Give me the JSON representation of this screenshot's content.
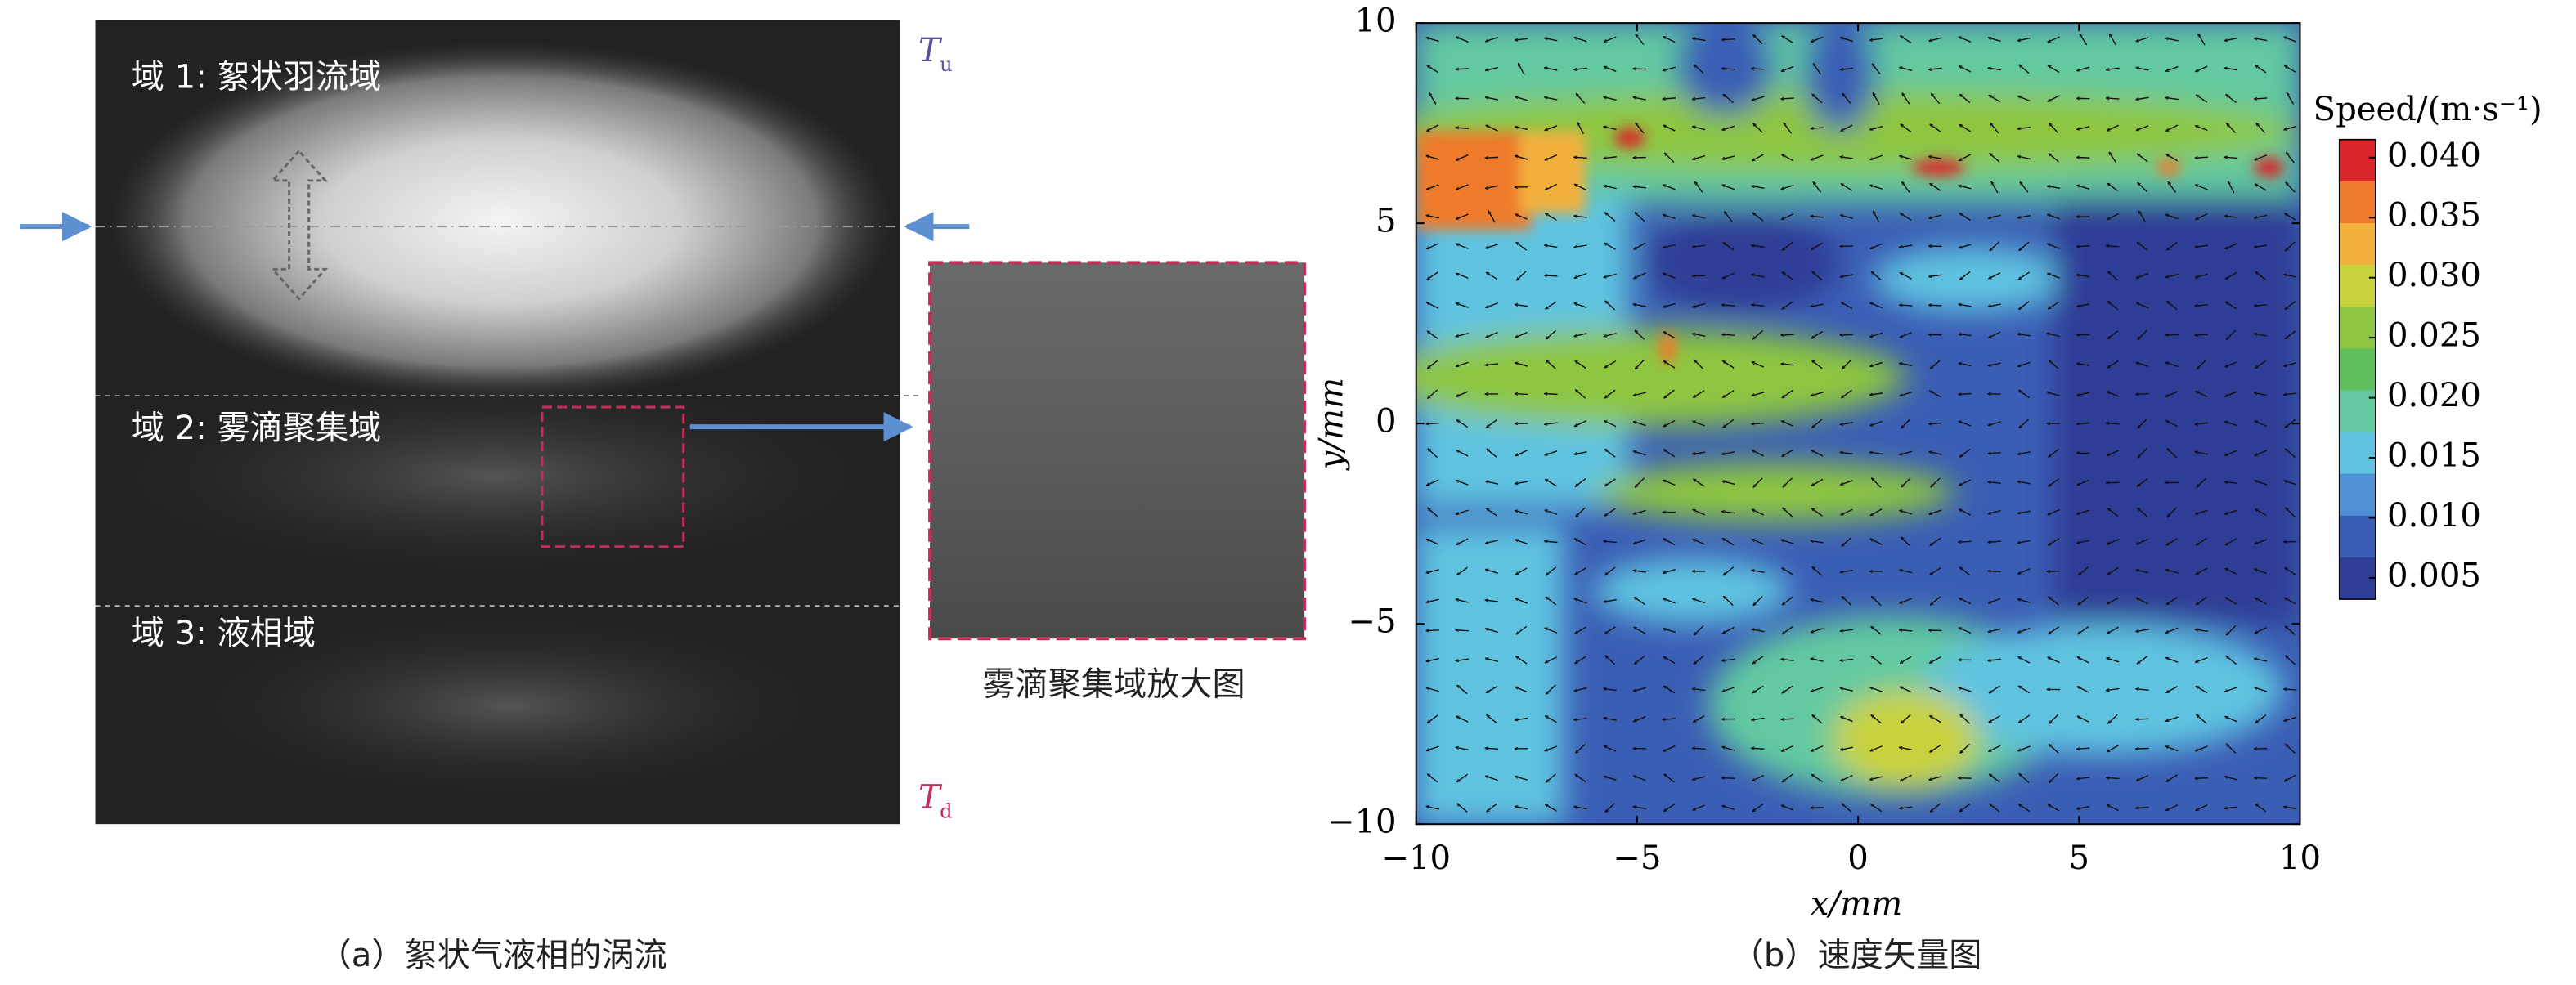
{
  "panel_a": {
    "regions": [
      "域 1: 絮状羽流域",
      "域 2: 雾滴聚集域",
      "域 3: 液相域"
    ],
    "t_upper": "T",
    "t_upper_sub": "u",
    "t_lower": "T",
    "t_lower_sub": "d",
    "zoom_caption": "雾滴聚集域放大图",
    "caption": "（a）絮状气液相的涡流"
  },
  "chart_data": {
    "type": "contour",
    "caption": "（b）速度矢量图",
    "xlabel": "x/mm",
    "ylabel": "y/mm",
    "xlim": [
      -10,
      10
    ],
    "ylim": [
      -10,
      10
    ],
    "xticks": [
      {
        "value": -10,
        "label": "−10"
      },
      {
        "value": -5,
        "label": "−5"
      },
      0,
      5,
      10
    ],
    "yticks": [
      {
        "value": -10,
        "label": "−10"
      },
      {
        "value": -5,
        "label": "−5"
      },
      0,
      5,
      10
    ],
    "colorbar": {
      "title": "Speed/(m·s⁻¹)",
      "ticks": [
        {
          "value": 0.04,
          "label": "0.040"
        },
        {
          "value": 0.035,
          "label": "0.035"
        },
        {
          "value": 0.03,
          "label": "0.030"
        },
        {
          "value": 0.025,
          "label": "0.025"
        },
        {
          "value": 0.02,
          "label": "0.020"
        },
        {
          "value": 0.015,
          "label": "0.015"
        },
        {
          "value": 0.01,
          "label": "0.010"
        },
        {
          "value": 0.005,
          "label": "0.005"
        }
      ],
      "colors": [
        "#d9262a",
        "#ee7a2c",
        "#f2b03c",
        "#c9d23c",
        "#8ec641",
        "#5fbf5a",
        "#62c9a0",
        "#5fc3e0",
        "#4f8fd6",
        "#3b5eb5",
        "#2e3d95"
      ]
    }
  }
}
